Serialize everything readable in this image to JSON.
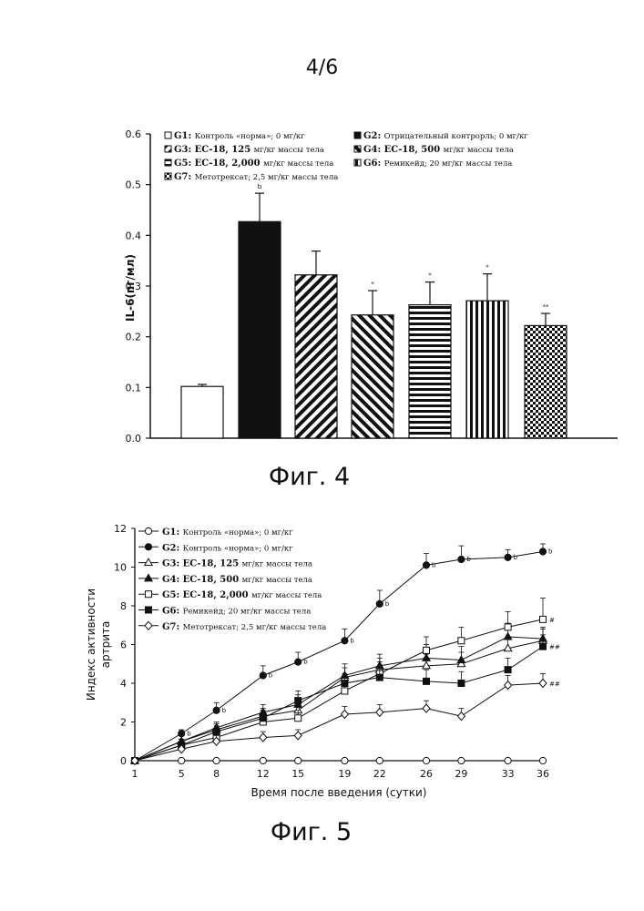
{
  "page": {
    "number": "4/6"
  },
  "figures": [
    {
      "caption": "Фиг. 4"
    },
    {
      "caption": "Фиг. 5"
    }
  ],
  "chart_data": [
    {
      "type": "bar",
      "ylabel": "IL-6(пг/мл)",
      "xlabel": "",
      "ylim": [
        0,
        0.6
      ],
      "yticks": [
        "0.0",
        "0.1",
        "0.2",
        "0.3",
        "0.4",
        "0.5",
        "0.6"
      ],
      "legend_position": "top",
      "categories": [
        "G1",
        "G2",
        "G3",
        "G4",
        "G5",
        "G6",
        "G7"
      ],
      "values": [
        0.102,
        0.427,
        0.322,
        0.243,
        0.263,
        0.271,
        0.222
      ],
      "errors": [
        0.004,
        0.056,
        0.047,
        0.048,
        0.045,
        0.053,
        0.024
      ],
      "significance": [
        "",
        "b",
        "",
        "*",
        "*",
        "*",
        "**"
      ],
      "patterns": [
        "empty",
        "solid",
        "diag-right",
        "diag-left",
        "horizontal",
        "vertical",
        "checker"
      ],
      "legend": [
        {
          "code": "G1:",
          "text": "Контроль «норма»; 0 мг/кг"
        },
        {
          "code": "G2:",
          "text": "Отрицательный контрорль; 0 мг/кг"
        },
        {
          "code": "G3: EC-18, 125",
          "text": "мг/кг массы тела"
        },
        {
          "code": "G4: EC-18, 500",
          "text": "мг/кг массы тела"
        },
        {
          "code": "G5: EC-18, 2,000",
          "text": "мг/кг массы тела"
        },
        {
          "code": "G6:",
          "text": "Ремикейд; 20 мг/кг массы тела"
        },
        {
          "code": "G7:",
          "text": "Метотрексат; 2,5 мг/кг массы тела"
        }
      ]
    },
    {
      "type": "line",
      "xlabel": "Время после введения (сутки)",
      "ylabel": "Индекс активности артрита",
      "ylabel_lines": [
        "Индекс активности",
        "артрита"
      ],
      "x": [
        1,
        5,
        8,
        12,
        15,
        19,
        22,
        26,
        29,
        33,
        36
      ],
      "xticks": [
        "1",
        "5",
        "8",
        "12",
        "15",
        "19",
        "22",
        "26",
        "29",
        "33",
        "36"
      ],
      "ylim": [
        0,
        12
      ],
      "yticks": [
        "0",
        "2",
        "4",
        "6",
        "8",
        "10",
        "12"
      ],
      "legend_position": "top-left",
      "series": [
        {
          "name": "G1: Контроль «норма»; 0 мг/кг",
          "code": "G1:",
          "text": "Контроль «норма»; 0 мг/кг",
          "marker": "circle-open",
          "values": [
            0,
            0,
            0,
            0,
            0,
            0,
            0,
            0,
            0,
            0,
            0
          ],
          "errors": [
            0,
            0,
            0,
            0,
            0,
            0,
            0,
            0,
            0,
            0,
            0
          ],
          "labels": [
            "",
            "",
            "",
            "",
            "",
            "",
            "",
            "",
            "",
            "",
            ""
          ],
          "end_label": ""
        },
        {
          "name": "G2: Контроль «норма»; 0 мг/кг",
          "code": "G2:",
          "text": "Контроль «норма»; 0 мг/кг",
          "marker": "circle-filled",
          "values": [
            0,
            1.4,
            2.6,
            4.4,
            5.1,
            6.2,
            8.1,
            10.1,
            10.4,
            10.5,
            10.8
          ],
          "errors": [
            0,
            0.2,
            0.4,
            0.5,
            0.5,
            0.6,
            0.7,
            0.6,
            0.7,
            0.4,
            0.4
          ],
          "labels": [
            "",
            "b",
            "b",
            "b",
            "b",
            "b",
            "b",
            "b",
            "b",
            "b",
            "b"
          ],
          "end_label": ""
        },
        {
          "name": "G3: EC-18, 125 мг/кг массы тела",
          "code": "G3: EC-18, 125",
          "text": "мг/кг массы тела",
          "marker": "triangle-open",
          "values": [
            0,
            1.0,
            1.6,
            2.3,
            2.6,
            4.3,
            4.7,
            4.9,
            5.0,
            5.8,
            6.2
          ],
          "errors": [
            0,
            0.3,
            0.3,
            0.4,
            0.4,
            0.5,
            0.6,
            0.6,
            0.6,
            0.6,
            0.6
          ],
          "labels": [
            "",
            "",
            "",
            "",
            "",
            "",
            "",
            "",
            "",
            "",
            ""
          ],
          "end_label": ""
        },
        {
          "name": "G4: EC-18, 500 мг/кг массы тела",
          "code": "G4: EC-18, 500",
          "text": "мг/кг массы тела",
          "marker": "triangle-filled",
          "values": [
            0,
            1.0,
            1.7,
            2.5,
            2.9,
            4.4,
            4.9,
            5.3,
            5.2,
            6.4,
            6.3
          ],
          "errors": [
            0,
            0.3,
            0.3,
            0.4,
            0.5,
            0.6,
            0.6,
            0.7,
            0.7,
            0.7,
            0.6
          ],
          "labels": [
            "",
            "",
            "",
            "",
            "",
            "",
            "",
            "",
            "",
            "",
            ""
          ],
          "end_label": ""
        },
        {
          "name": "G5: EC-18, 2,000 мг/кг массы тела",
          "code": "G5: EC-18, 2,000",
          "text": "мг/кг массы тела",
          "marker": "square-open",
          "values": [
            0,
            0.8,
            1.2,
            2.0,
            2.2,
            3.6,
            4.5,
            5.7,
            6.2,
            6.9,
            7.3
          ],
          "errors": [
            0,
            0.3,
            0.3,
            0.4,
            0.4,
            0.5,
            0.6,
            0.7,
            0.7,
            0.8,
            1.1
          ],
          "labels": [
            "",
            "",
            "",
            "",
            "",
            "",
            "",
            "",
            "",
            "",
            ""
          ],
          "end_label": "#"
        },
        {
          "name": "G6: Ремикейд; 20 мг/кг массы тела",
          "code": "G6:",
          "text": "Ремикейд; 20 мг/кг массы тела",
          "marker": "square-filled",
          "values": [
            0,
            0.8,
            1.5,
            2.2,
            3.1,
            4.0,
            4.3,
            4.1,
            4.0,
            4.7,
            5.9
          ],
          "errors": [
            0,
            0.3,
            0.3,
            0.4,
            0.5,
            0.5,
            0.6,
            0.6,
            0.6,
            0.6,
            0.6
          ],
          "labels": [
            "",
            "",
            "",
            "",
            "",
            "",
            "",
            "",
            "",
            "",
            ""
          ],
          "end_label": "##"
        },
        {
          "name": "G7: Метотрексат; 2,5 мг/кг массы тела",
          "code": "G7:",
          "text": "Метотрексат; 2,5 мг/кг массы тела",
          "marker": "diamond-open",
          "values": [
            0,
            0.6,
            1.0,
            1.2,
            1.3,
            2.4,
            2.5,
            2.7,
            2.3,
            3.9,
            4.0
          ],
          "errors": [
            0,
            0.2,
            0.3,
            0.3,
            0.3,
            0.4,
            0.4,
            0.4,
            0.4,
            0.5,
            0.5
          ],
          "labels": [
            "",
            "",
            "",
            "",
            "",
            "",
            "",
            "",
            "",
            "",
            ""
          ],
          "end_label": "##"
        }
      ]
    }
  ]
}
